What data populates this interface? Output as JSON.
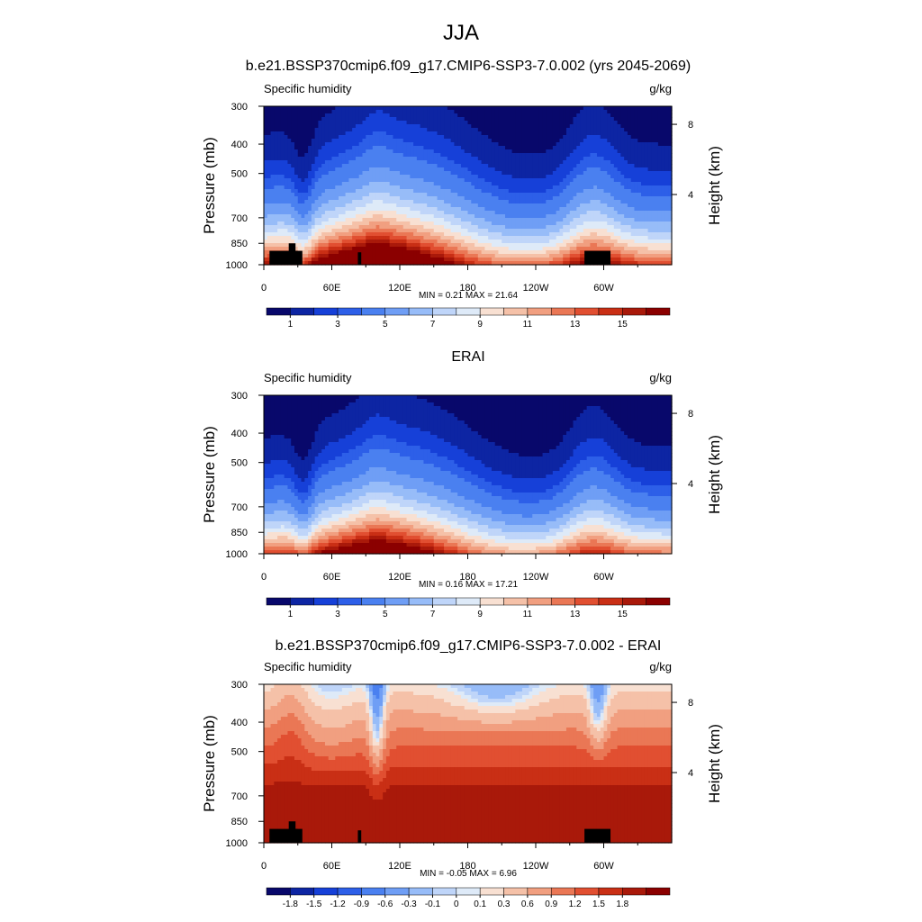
{
  "figure_title": "JJA",
  "chart_data": [
    {
      "type": "heatmap",
      "title": "b.e21.BSSP370cmip6.f09_g17.CMIP6-SSP3-7.0.002 (yrs 2045-2069)",
      "left_label": "Specific humidity",
      "right_label": "g/kg",
      "ylabel": "Pressure (mb)",
      "y2label": "Height (km)",
      "y_ticks": [
        "300",
        "400",
        "500",
        "700",
        "850",
        "1000"
      ],
      "y2_ticks": [
        "8",
        "4"
      ],
      "x_ticks": [
        "0",
        "60E",
        "120E",
        "180",
        "120W",
        "60W"
      ],
      "stats": "MIN =   0.21  MAX =  21.64",
      "field": "mean",
      "colorbar_labels": [
        "1",
        "3",
        "5",
        "7",
        "9",
        "11",
        "13",
        "15"
      ],
      "colorbar_levels": [
        0.5,
        1,
        1.5,
        2,
        3,
        4,
        5,
        6,
        7,
        8,
        9,
        10,
        11,
        12,
        13,
        14,
        15
      ],
      "has_topography": true
    },
    {
      "type": "heatmap",
      "title": "ERAI",
      "left_label": "Specific humidity",
      "right_label": "g/kg",
      "ylabel": "Pressure (mb)",
      "y2label": "Height (km)",
      "y_ticks": [
        "300",
        "400",
        "500",
        "700",
        "850",
        "1000"
      ],
      "y2_ticks": [
        "8",
        "4"
      ],
      "x_ticks": [
        "0",
        "60E",
        "120E",
        "180",
        "120W",
        "60W"
      ],
      "stats": "MIN =   0.16  MAX =  17.21",
      "field": "mean",
      "colorbar_labels": [
        "1",
        "3",
        "5",
        "7",
        "9",
        "11",
        "13",
        "15"
      ],
      "colorbar_levels": [
        0.5,
        1,
        1.5,
        2,
        3,
        4,
        5,
        6,
        7,
        8,
        9,
        10,
        11,
        12,
        13,
        14,
        15
      ],
      "has_topography": false
    },
    {
      "type": "heatmap",
      "title": "b.e21.BSSP370cmip6.f09_g17.CMIP6-SSP3-7.0.002 - ERAI",
      "left_label": "Specific humidity",
      "right_label": "g/kg",
      "ylabel": "Pressure (mb)",
      "y2label": "Height (km)",
      "y_ticks": [
        "300",
        "400",
        "500",
        "700",
        "850",
        "1000"
      ],
      "y2_ticks": [
        "8",
        "4"
      ],
      "x_ticks": [
        "0",
        "60E",
        "120E",
        "180",
        "120W",
        "60W"
      ],
      "stats": "MIN =  -0.05  MAX =   6.96",
      "field": "diff",
      "colorbar_labels": [
        "-1.8",
        "-1.5",
        "-1.2",
        "-0.9",
        "-0.6",
        "-0.3",
        "-0.1",
        "0",
        "0.1",
        "0.3",
        "0.6",
        "0.9",
        "1.2",
        "1.5",
        "1.8"
      ],
      "colorbar_levels": [
        -1.8,
        -1.5,
        -1.2,
        -0.9,
        -0.6,
        -0.3,
        -0.1,
        0,
        0.1,
        0.3,
        0.6,
        0.9,
        1.2,
        1.5,
        1.8
      ],
      "has_topography": true
    }
  ],
  "colors": {
    "palette": [
      "#08086b",
      "#0d25a3",
      "#1640d8",
      "#2d5fe8",
      "#4a80f0",
      "#6f9ef5",
      "#97bcf8",
      "#bfd5f9",
      "#deeaf8",
      "#f8e0d2",
      "#f5c1a8",
      "#f19f80",
      "#ea7755",
      "#e14f31",
      "#c92f15",
      "#a9190a",
      "#8b0000"
    ],
    "topography": "#000000"
  }
}
